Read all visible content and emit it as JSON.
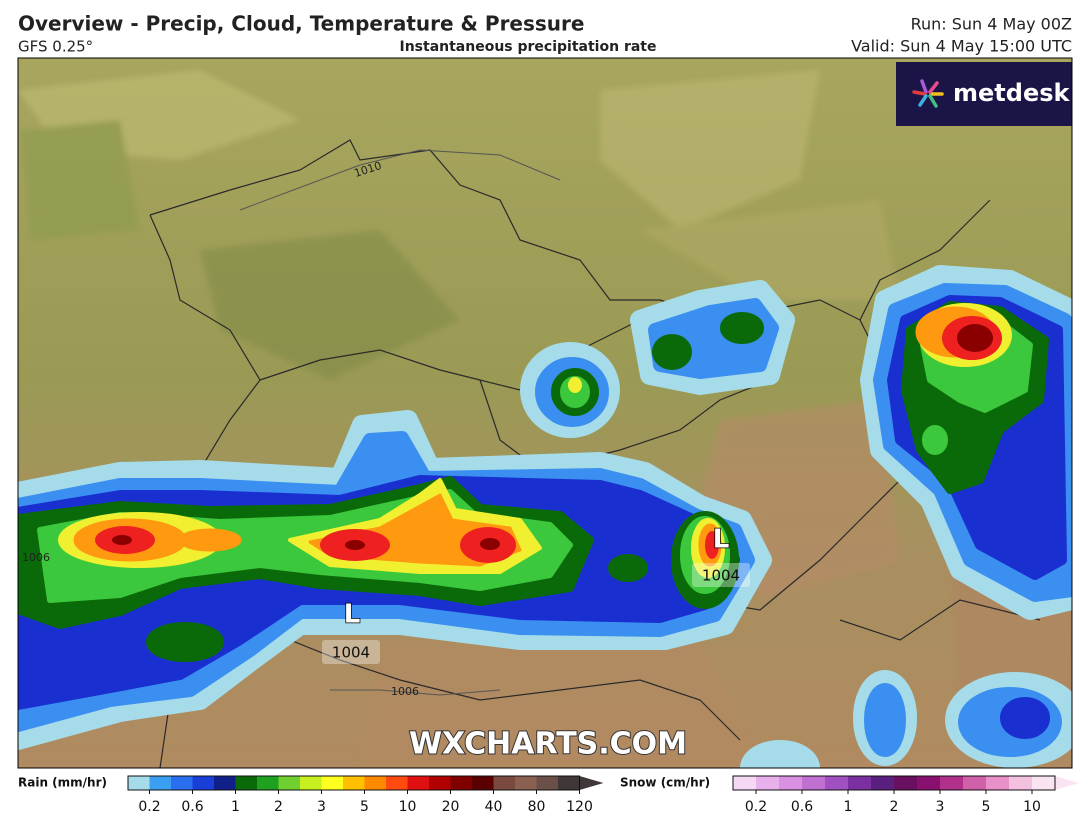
{
  "header": {
    "title": "Overview - Precip, Cloud, Temperature & Pressure",
    "model": "GFS 0.25°",
    "subtitle": "Instantaneous precipitation rate",
    "run": "Run: Sun 4 May 00Z",
    "valid": "Valid: Sun 4 May 15:00 UTC"
  },
  "logo": "metdesk",
  "watermark": "WXCHARTS.COM",
  "map": {
    "isobar_labels": [
      "1010",
      "1006",
      "1006"
    ],
    "lows": [
      {
        "symbol": "L",
        "pressure": "1004"
      },
      {
        "symbol": "L",
        "pressure": "1004"
      }
    ]
  },
  "legend": {
    "rain": {
      "title": "Rain (mm/hr)",
      "labels": [
        "0.2",
        "0.6",
        "1",
        "2",
        "3",
        "5",
        "10",
        "20",
        "40",
        "80",
        "120"
      ]
    },
    "snow": {
      "title": "Snow (cm/hr)",
      "labels": [
        "0.2",
        "0.6",
        "1",
        "2",
        "3",
        "5",
        "10"
      ]
    }
  }
}
